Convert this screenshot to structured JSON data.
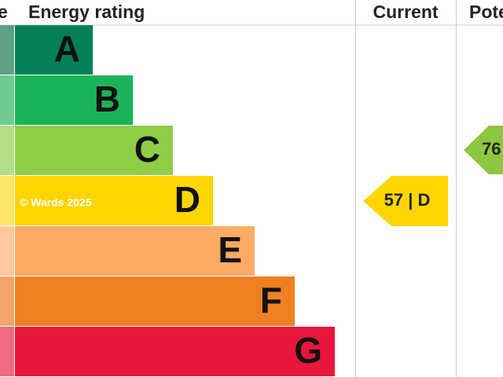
{
  "header": {
    "score": "e",
    "rating": "Energy rating",
    "current": "Current",
    "potential": "Pote"
  },
  "bands": [
    {
      "letter": "A"
    },
    {
      "letter": "B"
    },
    {
      "letter": "C"
    },
    {
      "letter": "D"
    },
    {
      "letter": "E"
    },
    {
      "letter": "F"
    },
    {
      "letter": "G"
    }
  ],
  "watermark": "© Wards 2025",
  "current": {
    "label": "57 | D"
  },
  "potential": {
    "label": "76"
  }
}
